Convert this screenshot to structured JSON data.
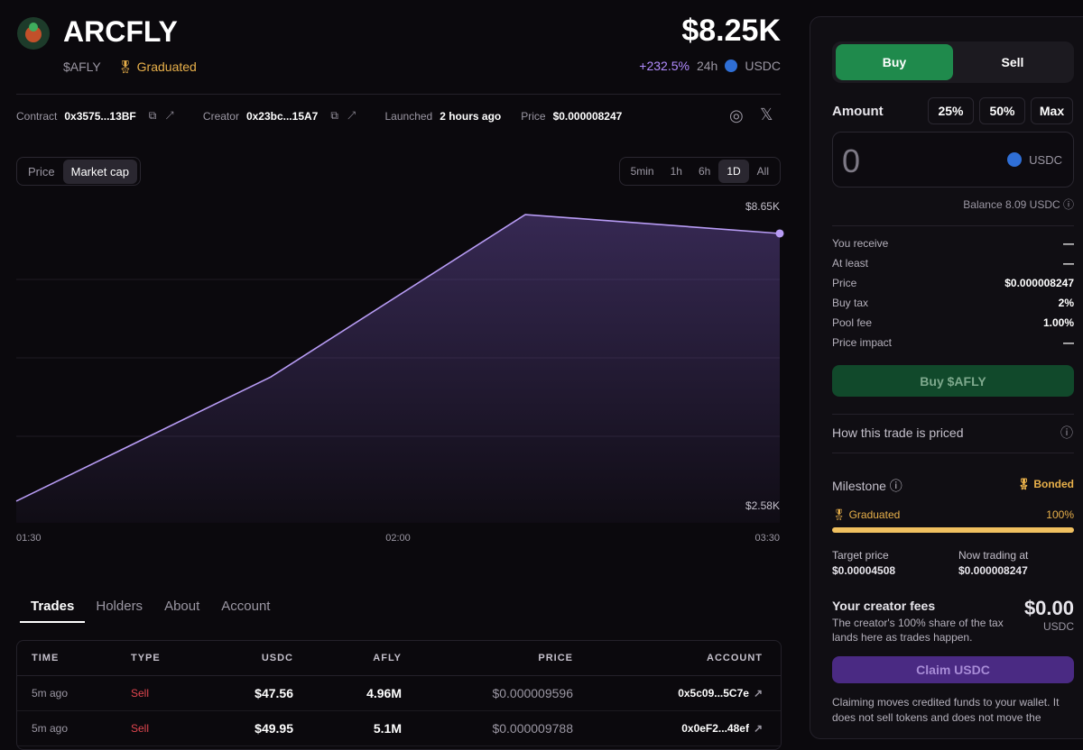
{
  "header": {
    "name": "ARCFLY",
    "ticker": "$AFLY",
    "status": "Graduated",
    "price": "$8.25K",
    "change": "+232.5%",
    "period": "24h",
    "currency": "USDC"
  },
  "info": [
    {
      "label": "Contract",
      "value": "0x3575...13BF"
    },
    {
      "label": "Creator",
      "value": "0x23bc...15A7"
    },
    {
      "label": "Launched",
      "value": "2 hours ago"
    },
    {
      "label": "Price",
      "value": "$0.000008247"
    }
  ],
  "chart_modes": [
    "Price",
    "Market cap"
  ],
  "ranges": [
    "5min",
    "1h",
    "6h",
    "1D",
    "All"
  ],
  "chart": {
    "type": "line",
    "x": [
      0,
      1,
      2,
      3
    ],
    "values": [
      2580,
      5210,
      8650,
      8250
    ],
    "color": "#b89cf5",
    "xlim": [
      0,
      3
    ],
    "xticks": [
      {
        "value": 0,
        "label": "01:30"
      },
      {
        "value": 1.5,
        "label": "02:00"
      },
      {
        "value": 3,
        "label": "03:30"
      }
    ],
    "ylim": [
      2120,
      9090
    ],
    "yticks": [
      {
        "value": 8650,
        "label": "$8.65K"
      },
      {
        "value": 2580,
        "label": "$2.58K"
      }
    ]
  },
  "tabs": [
    "Trades",
    "Holders",
    "About",
    "Account"
  ],
  "table": {
    "columns": [
      "TIME",
      "TYPE",
      "USDC",
      "AFLY",
      "PRICE",
      "ACCOUNT"
    ],
    "rows": [
      [
        "5m ago",
        "Sell",
        "$47.56",
        "4.96M",
        "$0.000009596",
        "0x5c09...5C7e"
      ],
      [
        "5m ago",
        "Sell",
        "$49.95",
        "5.1M",
        "$0.000009788",
        "0x0eF2...48ef"
      ]
    ]
  },
  "panel": {
    "sides": [
      "Buy",
      "Sell"
    ],
    "amount_label": "Amount",
    "presets": [
      "25%",
      "50%",
      "Max"
    ],
    "amount": "0",
    "currency": "USDC",
    "balance": "Balance 8.09 USDC",
    "details": [
      {
        "label": "You receive",
        "value": "—"
      },
      {
        "label": "At least",
        "value": "—"
      },
      {
        "label": "Price",
        "value": "$0.000008247"
      },
      {
        "label": "Buy tax",
        "value": "2%"
      },
      {
        "label": "Pool fee",
        "value": "1.00%"
      },
      {
        "label": "Price impact",
        "value": "—"
      }
    ],
    "buy_button": "Buy $AFLY",
    "pricing": "How this trade is priced",
    "milestone": {
      "label": "Milestone",
      "status": "Bonded",
      "progress_label": "Graduated",
      "progress": "100%",
      "target_label": "Target price",
      "target_value": "$0.00004508",
      "now_label": "Now trading at",
      "now_value": "$0.000008247"
    },
    "fees": {
      "title": "Your creator fees",
      "description": "The creator's 100% share of the tax lands here as trades happen.",
      "amount": "$0.00",
      "currency": "USDC"
    },
    "claim_button": "Claim USDC",
    "note": "Claiming moves credited funds to your wallet. It does not sell tokens and does not move the"
  }
}
